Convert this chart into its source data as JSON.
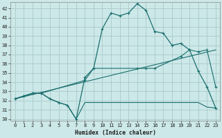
{
  "xlabel": "Humidex (Indice chaleur)",
  "bg_color": "#cce8e8",
  "grid_color": "#aacaca",
  "line_color": "#1a6e6e",
  "xlim": [
    -0.5,
    23.5
  ],
  "ylim": [
    29.8,
    42.7
  ],
  "xticks": [
    0,
    1,
    2,
    3,
    4,
    5,
    6,
    7,
    8,
    9,
    10,
    11,
    12,
    13,
    14,
    15,
    16,
    17,
    18,
    19,
    20,
    21,
    22,
    23
  ],
  "yticks": [
    30,
    31,
    32,
    33,
    34,
    35,
    36,
    37,
    38,
    39,
    40,
    41,
    42
  ],
  "line1_x": [
    0,
    1,
    2,
    3,
    4,
    5,
    6,
    7,
    8,
    9,
    10,
    11,
    12,
    13,
    14,
    15,
    16,
    17,
    18,
    19,
    20,
    21,
    22,
    23
  ],
  "line1_y": [
    32.2,
    32.5,
    32.8,
    32.8,
    32.2,
    31.8,
    31.5,
    30.0,
    34.5,
    35.5,
    39.8,
    41.5,
    41.2,
    41.5,
    42.5,
    41.8,
    39.5,
    39.3,
    38.0,
    38.2,
    37.5,
    35.2,
    33.5,
    31.2
  ],
  "line2_x": [
    0,
    1,
    2,
    3,
    4,
    5,
    6,
    7,
    8,
    9,
    10,
    11,
    12,
    13,
    14,
    15,
    16,
    17,
    18,
    19,
    20,
    21,
    22,
    23
  ],
  "line2_y": [
    32.2,
    32.5,
    32.8,
    32.8,
    32.2,
    31.8,
    31.5,
    30.0,
    31.8,
    31.8,
    31.8,
    31.8,
    31.8,
    31.8,
    31.8,
    31.8,
    31.8,
    31.8,
    31.8,
    31.8,
    31.8,
    31.8,
    31.3,
    31.2
  ],
  "line3_x": [
    0,
    1,
    2,
    3,
    8,
    9,
    14,
    15,
    16,
    19,
    20,
    21,
    22,
    23
  ],
  "line3_y": [
    32.2,
    32.5,
    32.8,
    32.8,
    34.2,
    35.5,
    35.5,
    35.5,
    35.5,
    36.8,
    37.5,
    37.3,
    37.5,
    33.5
  ],
  "line4_x": [
    0,
    23
  ],
  "line4_y": [
    32.2,
    37.5
  ]
}
